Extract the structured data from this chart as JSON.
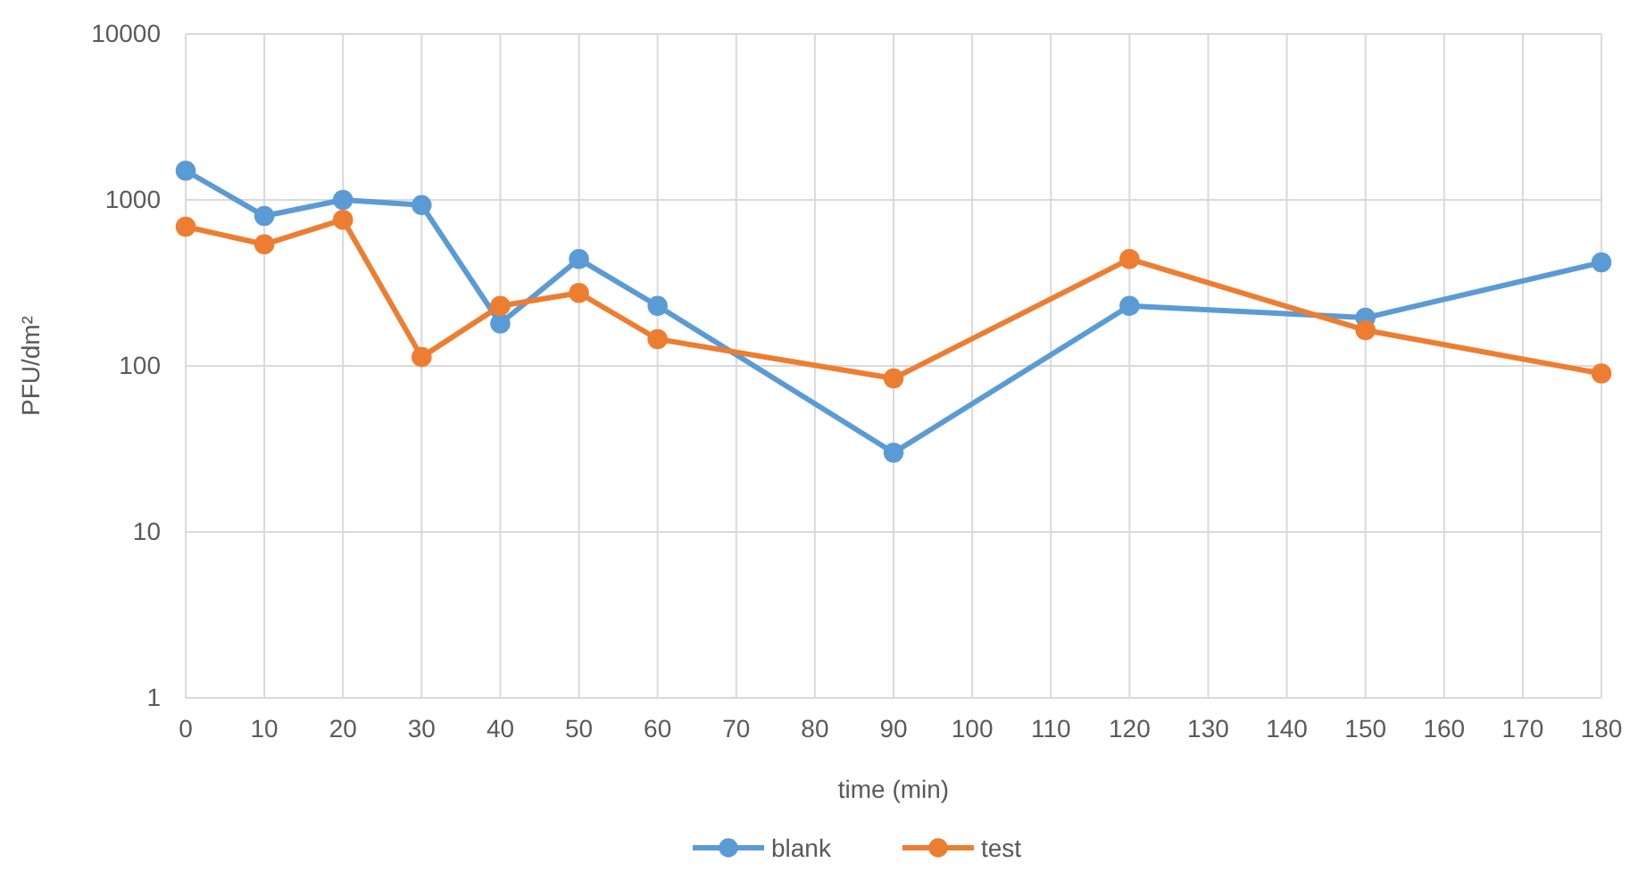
{
  "chart_data": {
    "type": "line",
    "xlabel": "time (min)",
    "ylabel": "PFU/dm²",
    "x": [
      0,
      10,
      20,
      30,
      40,
      50,
      60,
      90,
      120,
      150,
      180
    ],
    "series": [
      {
        "name": "blank",
        "color": "#5b9bd5",
        "values": [
          1500,
          800,
          1000,
          930,
          180,
          440,
          230,
          30,
          230,
          195,
          420
        ]
      },
      {
        "name": "test",
        "color": "#ed7d31",
        "values": [
          690,
          540,
          760,
          113,
          230,
          275,
          145,
          84,
          440,
          164,
          90
        ]
      }
    ],
    "xlim": [
      0,
      180
    ],
    "xticks": [
      0,
      10,
      20,
      30,
      40,
      50,
      60,
      70,
      80,
      90,
      100,
      110,
      120,
      130,
      140,
      150,
      160,
      170,
      180
    ],
    "ylim": [
      1,
      10000
    ],
    "yticks": [
      1,
      10,
      100,
      1000,
      10000
    ],
    "log": "y",
    "grid": true,
    "legend": "bottom",
    "marker": "circle",
    "line_style": "solid"
  }
}
